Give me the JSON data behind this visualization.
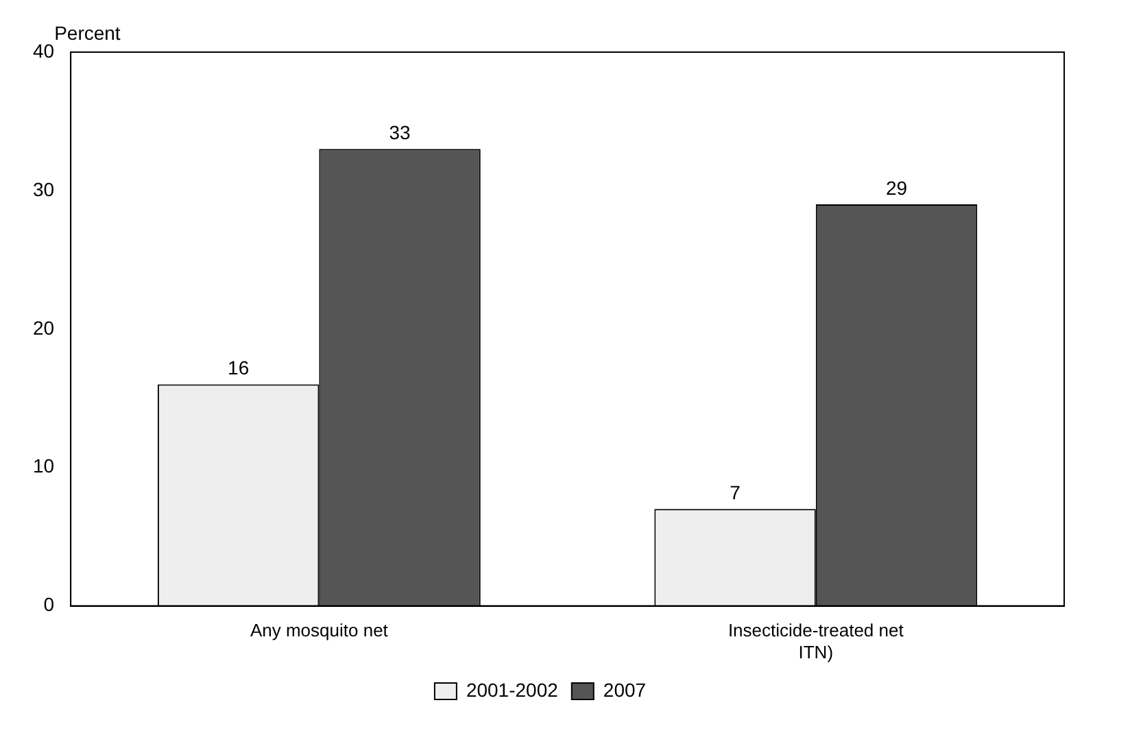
{
  "chart_data": {
    "type": "bar",
    "ylabel": "Percent",
    "categories": [
      "Any mosquito net",
      "Insecticide-treated net\nITN)"
    ],
    "series": [
      {
        "name": "2001-2002",
        "color": "#eeeeee",
        "values": [
          16,
          7
        ]
      },
      {
        "name": "2007",
        "color": "#555555",
        "values": [
          33,
          29
        ]
      }
    ],
    "ylim": [
      0,
      40
    ],
    "yticks": [
      0,
      10,
      20,
      30,
      40
    ],
    "grid": false,
    "legend": "bottom",
    "data_labels": true
  }
}
